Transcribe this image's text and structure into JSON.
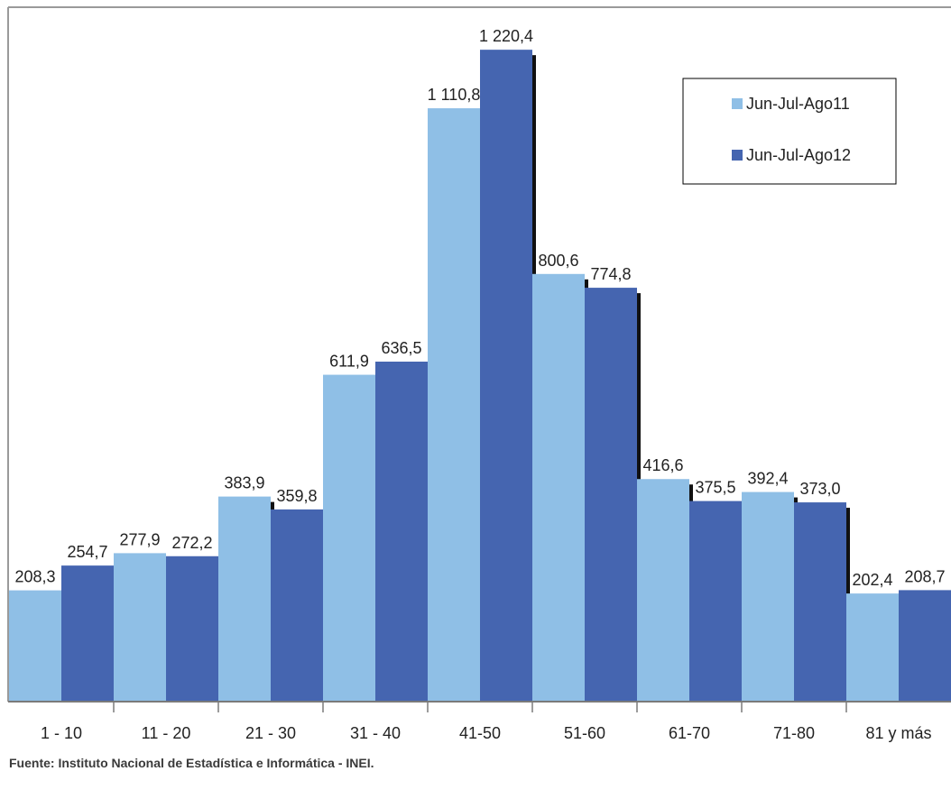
{
  "chart_data": {
    "type": "bar",
    "categories": [
      "1 - 10",
      "11 - 20",
      "21 - 30",
      "31 - 40",
      "41-50",
      "51-60",
      "61-70",
      "71-80",
      "81 y más"
    ],
    "series": [
      {
        "name": "Jun-Jul-Ago11",
        "color": "#8fbfe6",
        "values": [
          208.3,
          277.9,
          383.9,
          611.9,
          1110.8,
          800.6,
          416.6,
          392.4,
          202.4
        ],
        "labels": [
          "208,3",
          "277,9",
          "383,9",
          "611,9",
          "1 110,8",
          "800,6",
          "416,6",
          "392,4",
          "202,4"
        ]
      },
      {
        "name": "Jun-Jul-Ago12",
        "color": "#4565b0",
        "values": [
          254.7,
          272.2,
          359.8,
          636.5,
          1220.4,
          774.8,
          375.5,
          373.0,
          208.7
        ],
        "labels": [
          "254,7",
          "272,2",
          "359,8",
          "636,5",
          "1 220,4",
          "774,8",
          "375,5",
          "373,0",
          "208,7"
        ]
      }
    ],
    "ylim": [
      0,
      1300
    ],
    "grid": false,
    "legend_position": "top-right"
  },
  "source": "Fuente: Instituto Nacional de Estadística e Informática - INEI."
}
